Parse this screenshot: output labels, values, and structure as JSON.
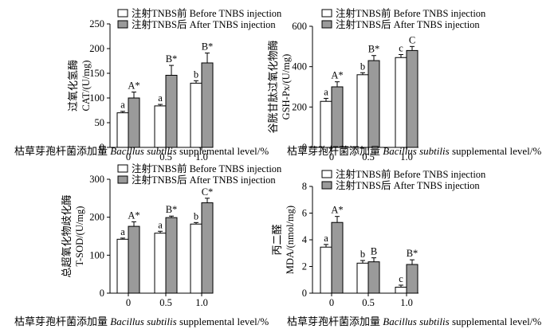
{
  "chart_data": [
    {
      "type": "bar",
      "ylabel_line1": "过氧化氢酶",
      "ylabel_line2": "CAT/(U/mg)",
      "xlabel_cn": "枯草芽孢杆菌添加量 ",
      "xlabel_en": "Bacillus subtilis",
      "xlabel_tail": " supplemental level/%",
      "categories": [
        "0",
        "0.5",
        "1.0"
      ],
      "ylim": [
        0,
        250
      ],
      "yticks": [
        0,
        50,
        100,
        150,
        200,
        250
      ],
      "legend": [
        "注射TNBS前  Before TNBS injection",
        "注射TNBS后  After TNBS injection"
      ],
      "series": [
        {
          "name": "注射TNBS前  Before TNBS injection",
          "color": "#ffffff",
          "values": [
            70,
            84,
            130
          ],
          "errors": [
            3,
            3,
            5
          ],
          "labels": [
            "a",
            "a",
            "b"
          ]
        },
        {
          "name": "注射TNBS后  After TNBS injection",
          "color": "#9a9a9a",
          "values": [
            100,
            146,
            171
          ],
          "errors": [
            12,
            20,
            20
          ],
          "labels": [
            "A*",
            "B*",
            "B*"
          ]
        }
      ]
    },
    {
      "type": "bar",
      "ylabel_line1": "谷胱甘肽过氧化物酶",
      "ylabel_line2": "GSH-Px/(U/mg)",
      "xlabel_cn": "枯草芽孢杆菌添加量 ",
      "xlabel_en": "Bacillus subtilis",
      "xlabel_tail": " supplemental level/%",
      "categories": [
        "0",
        "0.5",
        "1.0"
      ],
      "ylim": [
        0,
        600
      ],
      "yticks": [
        0,
        200,
        400,
        600
      ],
      "legend": [
        "注射TNBS前  Before TNBS injection",
        "注射TNBS后  After  TNBS injection"
      ],
      "series": [
        {
          "name": "注射TNBS前  Before TNBS injection",
          "color": "#ffffff",
          "values": [
            228,
            360,
            445
          ],
          "errors": [
            15,
            10,
            15
          ],
          "labels": [
            "a",
            "b",
            "c"
          ]
        },
        {
          "name": "注射TNBS后  After  TNBS injection",
          "color": "#9a9a9a",
          "values": [
            300,
            430,
            480
          ],
          "errors": [
            25,
            25,
            20
          ],
          "labels": [
            "A*",
            "B*",
            "C"
          ]
        }
      ]
    },
    {
      "type": "bar",
      "ylabel_line1": "总超氧化物歧化酶",
      "ylabel_line2": "T-SOD/(U/mg)",
      "xlabel_cn": "枯草芽孢杆菌添加量 ",
      "xlabel_en": "Bacillus subtilis",
      "xlabel_tail": " supplemental level/%",
      "categories": [
        "0",
        "0.5",
        "1.0"
      ],
      "ylim": [
        0,
        300
      ],
      "yticks": [
        0,
        100,
        200,
        300
      ],
      "legend": [
        "注射TNBS前  Before TNBS injection",
        "注射TNBS后  After TNBS injection"
      ],
      "series": [
        {
          "name": "注射TNBS前  Before TNBS injection",
          "color": "#ffffff",
          "values": [
            142,
            158,
            182
          ],
          "errors": [
            3,
            5,
            4
          ],
          "labels": [
            "a",
            "a",
            "b"
          ]
        },
        {
          "name": "注射TNBS后  After TNBS injection",
          "color": "#9a9a9a",
          "values": [
            176,
            199,
            238
          ],
          "errors": [
            12,
            4,
            12
          ],
          "labels": [
            "A*",
            "B*",
            "C*"
          ]
        }
      ]
    },
    {
      "type": "bar",
      "ylabel_line1": "丙二醛",
      "ylabel_line2": "MDA/(nmol/mg)",
      "xlabel_cn": "枯草芽孢杆菌添加量 ",
      "xlabel_en": "Bacillus subtilis",
      "xlabel_tail": " supplemental level/%",
      "categories": [
        "0",
        "0.5",
        "1.0"
      ],
      "ylim": [
        0,
        8
      ],
      "yticks": [
        0,
        2,
        4,
        6,
        8
      ],
      "legend": [
        "注射TNBS前  Before TNBS injection",
        "注射TNBS后  After  TNBS injection"
      ],
      "series": [
        {
          "name": "注射TNBS前  Before TNBS injection",
          "color": "#ffffff",
          "values": [
            3.45,
            2.25,
            0.45
          ],
          "errors": [
            0.2,
            0.2,
            0.15
          ],
          "labels": [
            "a",
            "b",
            "c"
          ]
        },
        {
          "name": "注射TNBS后  After  TNBS injection",
          "color": "#9a9a9a",
          "values": [
            5.3,
            2.35,
            2.15
          ],
          "errors": [
            0.45,
            0.3,
            0.35
          ],
          "labels": [
            "A*",
            "B",
            "B*"
          ]
        }
      ]
    }
  ]
}
